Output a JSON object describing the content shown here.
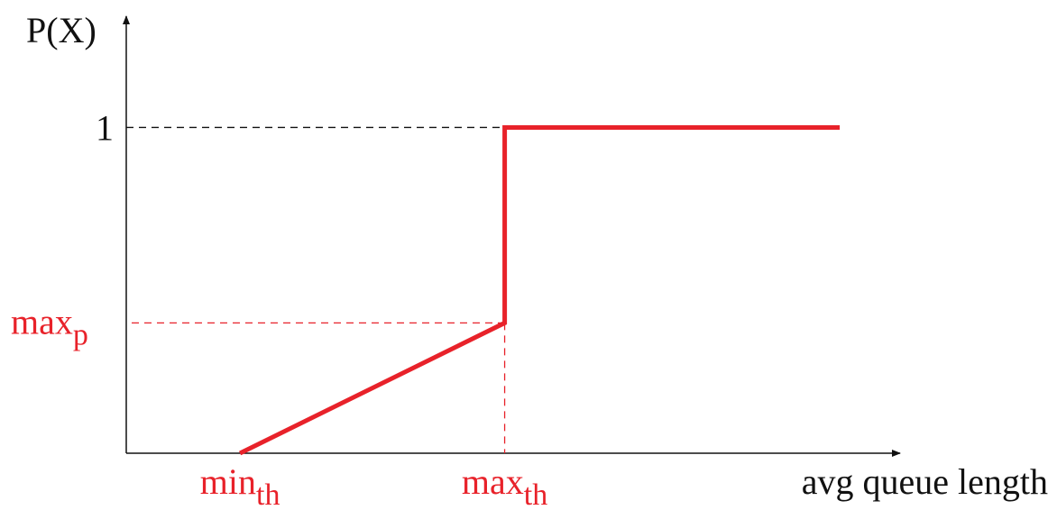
{
  "chart_data": {
    "type": "line",
    "ylabel": "P(X)",
    "xlabel": "avg queue length",
    "y_ticks": {
      "one": "1"
    },
    "markers": {
      "max_p": {
        "main": "max",
        "sub": "p"
      },
      "min_th": {
        "main": "min",
        "sub": "th"
      },
      "max_th": {
        "main": "max",
        "sub": "th"
      }
    },
    "xlim": [
      0,
      1
    ],
    "ylim": [
      0,
      1.3
    ],
    "x_min_th": 0.147,
    "x_max_th": 0.489,
    "x_end": 0.922,
    "max_p_value": 0.4,
    "series": [
      {
        "x": [
          0.147,
          0.489,
          0.489,
          0.922
        ],
        "y": [
          0,
          0.4,
          1,
          1
        ]
      }
    ],
    "colors": {
      "curve": "#e8222a",
      "axis": "#111111"
    }
  }
}
